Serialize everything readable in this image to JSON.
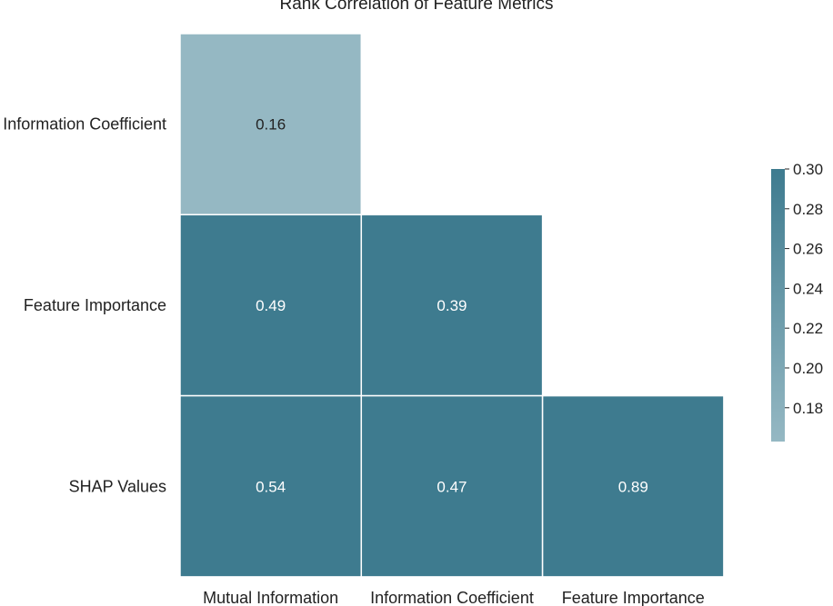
{
  "chart_data": {
    "type": "heatmap",
    "title": "Rank Correlation of Feature Metrics",
    "x_categories": [
      "Mutual Information",
      "Information Coefficient",
      "Feature Importance"
    ],
    "y_categories": [
      "Information Coefficient",
      "Feature Importance",
      "SHAP Values"
    ],
    "cells": [
      {
        "row": 0,
        "col": 0,
        "value": 0.16,
        "label": "0.16"
      },
      {
        "row": 1,
        "col": 0,
        "value": 0.49,
        "label": "0.49"
      },
      {
        "row": 1,
        "col": 1,
        "value": 0.39,
        "label": "0.39"
      },
      {
        "row": 2,
        "col": 0,
        "value": 0.54,
        "label": "0.54"
      },
      {
        "row": 2,
        "col": 1,
        "value": 0.47,
        "label": "0.47"
      },
      {
        "row": 2,
        "col": 2,
        "value": 0.89,
        "label": "0.89"
      }
    ],
    "mask": "upper-triangle",
    "colorbar": {
      "range": [
        0.163,
        0.3
      ],
      "ticks": [
        0.18,
        0.2,
        0.22,
        0.24,
        0.26,
        0.28,
        0.3
      ],
      "tick_labels": [
        "0.18",
        "0.20",
        "0.22",
        "0.24",
        "0.26",
        "0.28",
        "0.30"
      ],
      "color_low": "#95b8c3",
      "color_high": "#3e7b8f",
      "placement": "right"
    },
    "cell_text_color_light": "#ffffff",
    "cell_text_color_dark": "#222222"
  }
}
